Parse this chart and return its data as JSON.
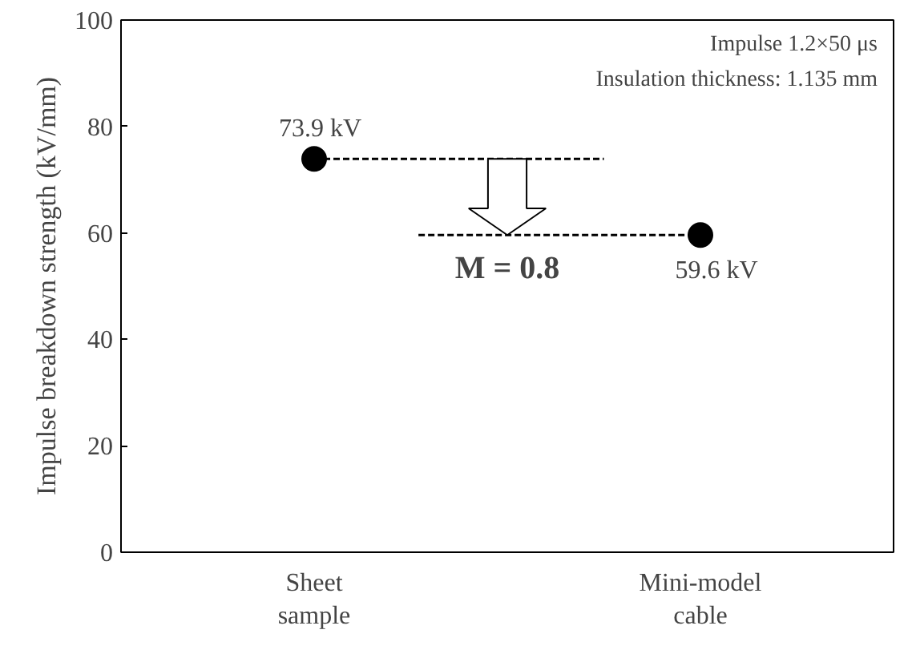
{
  "chart_data": {
    "type": "scatter",
    "ylabel": "Impulse breakdown strength (kV/mm)",
    "categories": [
      "Sheet\nsample",
      "Mini-model\ncable"
    ],
    "ylim": [
      0,
      100
    ],
    "yticks": [
      0,
      20,
      40,
      60,
      80,
      100
    ],
    "marker": "circle",
    "series": [
      {
        "color": "#000000",
        "values": [
          73.9,
          59.6
        ],
        "value_labels": [
          "73.9 kV",
          "59.6 kV"
        ]
      }
    ],
    "ref_lines": [
      {
        "axis": "y",
        "value": 73.9,
        "color": "#000000",
        "line_style": "dashed"
      },
      {
        "axis": "y",
        "value": 59.6,
        "color": "#000000",
        "line_style": "dashed"
      }
    ],
    "annotations": [
      "Impulse 1.2×50 μs",
      "Insulation thickness: 1.135 mm",
      {
        "text": "M = 0.8",
        "y": 59.6
      }
    ]
  }
}
